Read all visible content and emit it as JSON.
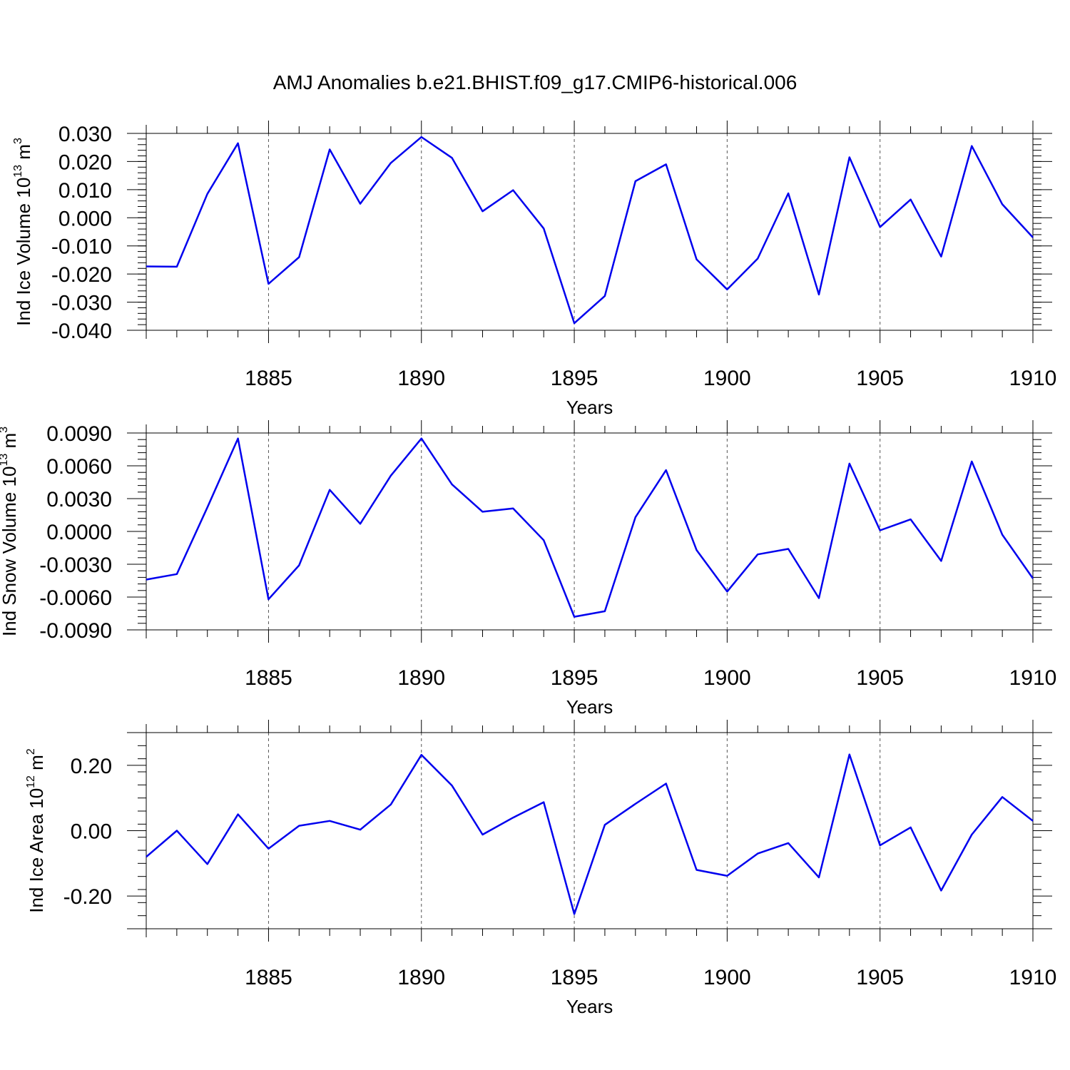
{
  "figure_title": "AMJ Anomalies b.e21.BHIST.f09_g17.CMIP6-historical.006",
  "line_color": "#0000ee",
  "chart_data": [
    {
      "type": "line",
      "title": "AMJ Anomalies b.e21.BHIST.f09_g17.CMIP6-historical.006",
      "xlabel": "Years",
      "ylabel_main": "Ind Ice Volume 10",
      "ylabel_exp": "13",
      "ylabel_unit": " m",
      "ylabel_unit_exp": "3",
      "xlim": [
        1881,
        1910
      ],
      "ylim": [
        -0.04,
        0.03
      ],
      "xticks": [
        1885,
        1890,
        1895,
        1900,
        1905,
        1910
      ],
      "xtick_labels": [
        "1885",
        "1890",
        "1895",
        "1900",
        "1905",
        "1910"
      ],
      "yticks": [
        -0.04,
        -0.03,
        -0.02,
        -0.01,
        0.0,
        0.01,
        0.02,
        0.03
      ],
      "ytick_labels": [
        "-0.040",
        "-0.030",
        "-0.020",
        "-0.010",
        "0.000",
        "0.010",
        "0.020",
        "0.030"
      ],
      "x": [
        1881,
        1882,
        1883,
        1884,
        1885,
        1886,
        1887,
        1888,
        1889,
        1890,
        1891,
        1892,
        1893,
        1894,
        1895,
        1896,
        1897,
        1898,
        1899,
        1900,
        1901,
        1902,
        1903,
        1904,
        1905,
        1906,
        1907,
        1908,
        1909,
        1910
      ],
      "values": [
        -0.0173,
        -0.0174,
        0.0085,
        0.0265,
        -0.0235,
        -0.014,
        0.0243,
        0.005,
        0.0195,
        0.0287,
        0.0213,
        0.0023,
        0.0098,
        -0.0038,
        -0.0375,
        -0.0278,
        0.013,
        0.019,
        -0.0148,
        -0.0255,
        -0.0145,
        0.0087,
        -0.0273,
        0.0215,
        -0.0033,
        0.0065,
        -0.0138,
        0.0255,
        0.0048,
        -0.007
      ]
    },
    {
      "type": "line",
      "xlabel": "Years",
      "ylabel_main": "Ind Snow Volume 10",
      "ylabel_exp": "13",
      "ylabel_unit": " m",
      "ylabel_unit_exp": "3",
      "xlim": [
        1881,
        1910
      ],
      "ylim": [
        -0.009,
        0.009
      ],
      "xticks": [
        1885,
        1890,
        1895,
        1900,
        1905,
        1910
      ],
      "xtick_labels": [
        "1885",
        "1890",
        "1895",
        "1900",
        "1905",
        "1910"
      ],
      "yticks": [
        -0.009,
        -0.006,
        -0.003,
        0.0,
        0.003,
        0.006,
        0.009
      ],
      "ytick_labels": [
        "-0.0090",
        "-0.0060",
        "-0.0030",
        "0.0000",
        "0.0030",
        "0.0060",
        "0.0090"
      ],
      "x": [
        1881,
        1882,
        1883,
        1884,
        1885,
        1886,
        1887,
        1888,
        1889,
        1890,
        1891,
        1892,
        1893,
        1894,
        1895,
        1896,
        1897,
        1898,
        1899,
        1900,
        1901,
        1902,
        1903,
        1904,
        1905,
        1906,
        1907,
        1908,
        1909,
        1910
      ],
      "values": [
        -0.0044,
        -0.0039,
        0.0022,
        0.0085,
        -0.0062,
        -0.0031,
        0.0038,
        0.0007,
        0.0051,
        0.0085,
        0.0043,
        0.0018,
        0.0021,
        -0.0008,
        -0.0078,
        -0.0073,
        0.0013,
        0.0056,
        -0.0017,
        -0.0055,
        -0.0021,
        -0.0016,
        -0.0061,
        0.0062,
        0.0001,
        0.0011,
        -0.0027,
        0.0064,
        -0.0003,
        -0.0043
      ]
    },
    {
      "type": "line",
      "xlabel": "Years",
      "ylabel_main": "Ind Ice Area 10",
      "ylabel_exp": "12",
      "ylabel_unit": " m",
      "ylabel_unit_exp": "2",
      "xlim": [
        1881,
        1910
      ],
      "ylim": [
        -0.3,
        0.3
      ],
      "xticks": [
        1885,
        1890,
        1895,
        1900,
        1905,
        1910
      ],
      "xtick_labels": [
        "1885",
        "1890",
        "1895",
        "1900",
        "1905",
        "1910"
      ],
      "yticks": [
        -0.2,
        0.0,
        0.2
      ],
      "ytick_labels": [
        "-0.20",
        "0.00",
        "0.20"
      ],
      "x": [
        1881,
        1882,
        1883,
        1884,
        1885,
        1886,
        1887,
        1888,
        1889,
        1890,
        1891,
        1892,
        1893,
        1894,
        1895,
        1896,
        1897,
        1898,
        1899,
        1900,
        1901,
        1902,
        1903,
        1904,
        1905,
        1906,
        1907,
        1908,
        1909,
        1910
      ],
      "values": [
        -0.08,
        0.0,
        -0.102,
        0.05,
        -0.055,
        0.015,
        0.03,
        0.003,
        0.08,
        0.232,
        0.138,
        -0.012,
        0.04,
        0.087,
        -0.255,
        0.018,
        0.082,
        0.144,
        -0.12,
        -0.138,
        -0.07,
        -0.038,
        -0.143,
        0.233,
        -0.045,
        0.01,
        -0.183,
        -0.012,
        0.103,
        0.03
      ]
    }
  ]
}
